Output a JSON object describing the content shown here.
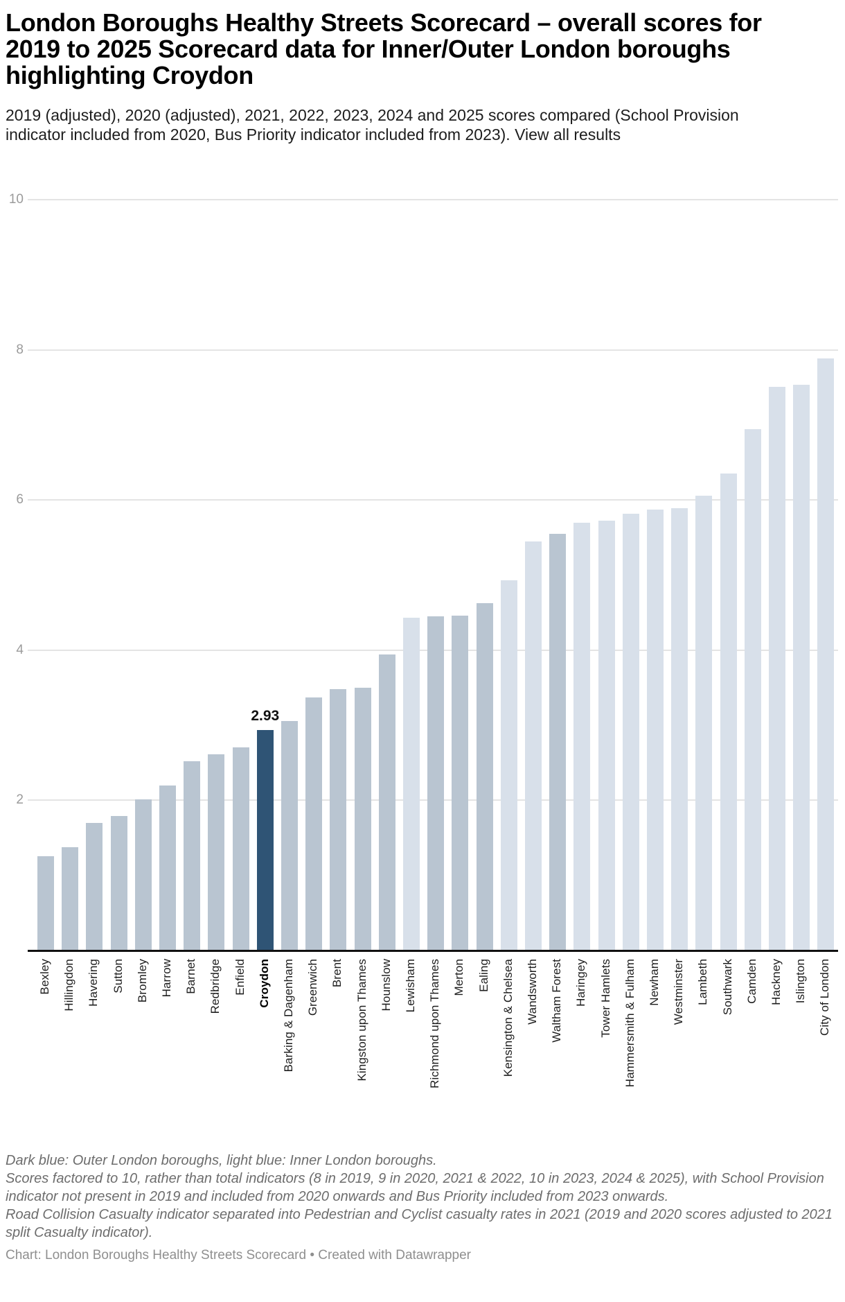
{
  "header": {
    "title": "London Boroughs Healthy Streets Scorecard – overall scores for 2019 to 2025 Scorecard data for Inner/Outer London boroughs highlighting Croydon",
    "subtitle": "2019 (adjusted), 2020 (adjusted), 2021, 2022, 2023, 2024 and 2025 scores compared (School Provision indicator included from 2020, Bus Priority indicator included from 2023). ",
    "view_all_link": "View all results"
  },
  "chart_data": {
    "type": "bar",
    "title": "London Boroughs Healthy Streets Scorecard – overall scores for 2019 to 2025",
    "xlabel": "",
    "ylabel": "",
    "ylim": [
      0,
      10
    ],
    "yticks": [
      2,
      4,
      6,
      8,
      10
    ],
    "grid": "horizontal",
    "legend_note": "Dark blue: Outer London boroughs, light blue: Inner London boroughs.",
    "colors": {
      "outer_london": "#b9c5d1",
      "inner_london": "#d8e0ea",
      "croydon_highlight": "#2f5475",
      "gridline": "#e4e4e4",
      "baseline": "#111111"
    },
    "highlight": {
      "label": "Croydon",
      "value_label": "2.93"
    },
    "bars": [
      {
        "label": "Bexley",
        "value": 1.25,
        "group": "outer"
      },
      {
        "label": "Hillingdon",
        "value": 1.37,
        "group": "outer"
      },
      {
        "label": "Havering",
        "value": 1.69,
        "group": "outer"
      },
      {
        "label": "Sutton",
        "value": 1.78,
        "group": "outer"
      },
      {
        "label": "Bromley",
        "value": 2.0,
        "group": "outer"
      },
      {
        "label": "Harrow",
        "value": 2.19,
        "group": "outer"
      },
      {
        "label": "Barnet",
        "value": 2.51,
        "group": "outer"
      },
      {
        "label": "Redbridge",
        "value": 2.6,
        "group": "outer"
      },
      {
        "label": "Enfield",
        "value": 2.7,
        "group": "outer"
      },
      {
        "label": "Croydon",
        "value": 2.93,
        "group": "croydon",
        "value_label": "2.93"
      },
      {
        "label": "Barking & Dagenham",
        "value": 3.05,
        "group": "outer"
      },
      {
        "label": "Greenwich",
        "value": 3.36,
        "group": "outer"
      },
      {
        "label": "Brent",
        "value": 3.47,
        "group": "outer"
      },
      {
        "label": "Kingston upon Thames",
        "value": 3.49,
        "group": "outer"
      },
      {
        "label": "Hounslow",
        "value": 3.93,
        "group": "outer"
      },
      {
        "label": "Lewisham",
        "value": 4.42,
        "group": "inner"
      },
      {
        "label": "Richmond upon Thames",
        "value": 4.44,
        "group": "outer"
      },
      {
        "label": "Merton",
        "value": 4.45,
        "group": "outer"
      },
      {
        "label": "Ealing",
        "value": 4.62,
        "group": "outer"
      },
      {
        "label": "Kensington & Chelsea",
        "value": 4.92,
        "group": "inner"
      },
      {
        "label": "Wandsworth",
        "value": 5.44,
        "group": "inner"
      },
      {
        "label": "Waltham Forest",
        "value": 5.54,
        "group": "outer"
      },
      {
        "label": "Haringey",
        "value": 5.69,
        "group": "inner"
      },
      {
        "label": "Tower Hamlets",
        "value": 5.72,
        "group": "inner"
      },
      {
        "label": "Hammersmith & Fulham",
        "value": 5.81,
        "group": "inner"
      },
      {
        "label": "Newham",
        "value": 5.86,
        "group": "inner"
      },
      {
        "label": "Westminster",
        "value": 5.88,
        "group": "inner"
      },
      {
        "label": "Lambeth",
        "value": 6.05,
        "group": "inner"
      },
      {
        "label": "Southwark",
        "value": 6.34,
        "group": "inner"
      },
      {
        "label": "Camden",
        "value": 6.93,
        "group": "inner"
      },
      {
        "label": "Hackney",
        "value": 7.5,
        "group": "inner"
      },
      {
        "label": "Islington",
        "value": 7.53,
        "group": "inner"
      },
      {
        "label": "City of London",
        "value": 7.88,
        "group": "inner"
      }
    ]
  },
  "notes": [
    "Dark blue: Outer London boroughs, light blue: Inner London boroughs.",
    "Scores factored to 10, rather than total indicators (8 in 2019, 9 in 2020, 2021 & 2022, 10 in 2023, 2024 & 2025), with School Provision indicator not present in 2019 and included from 2020 onwards and Bus Priority included from 2023 onwards.",
    "Road Collision Casualty indicator separated into Pedestrian and Cyclist casualty rates in 2021 (2019 and 2020 scores adjusted to 2021 split Casualty indicator)."
  ],
  "credit": "Chart: London Boroughs Healthy Streets Scorecard • Created with Datawrapper"
}
